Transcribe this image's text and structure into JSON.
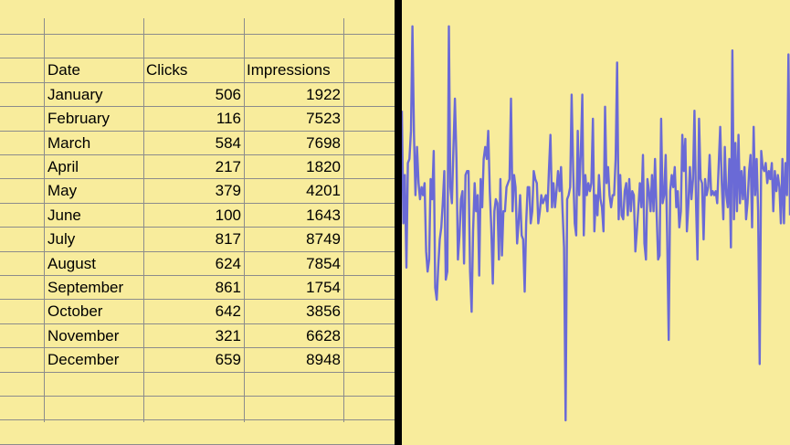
{
  "sheet": {
    "headers": {
      "date": "Date",
      "clicks": "Clicks",
      "impressions": "Impressions"
    },
    "rows": [
      {
        "date": "January",
        "clicks": "506",
        "impressions": "1922"
      },
      {
        "date": "February",
        "clicks": "116",
        "impressions": "7523"
      },
      {
        "date": "March",
        "clicks": "584",
        "impressions": "7698"
      },
      {
        "date": "April",
        "clicks": "217",
        "impressions": "1820"
      },
      {
        "date": "May",
        "clicks": "379",
        "impressions": "4201"
      },
      {
        "date": "June",
        "clicks": "100",
        "impressions": "1643"
      },
      {
        "date": "July",
        "clicks": "817",
        "impressions": "8749"
      },
      {
        "date": "August",
        "clicks": "624",
        "impressions": "7854"
      },
      {
        "date": "September",
        "clicks": "861",
        "impressions": "1754"
      },
      {
        "date": "October",
        "clicks": "642",
        "impressions": "3856"
      },
      {
        "date": "November",
        "clicks": "321",
        "impressions": "6628"
      },
      {
        "date": "December",
        "clicks": "659",
        "impressions": "8948"
      }
    ]
  },
  "chart_data": {
    "type": "line",
    "title": "",
    "xlabel": "",
    "ylabel": "",
    "grid": false,
    "line_color": "#6a6ad6",
    "background_color": "#f8ec9c",
    "ylim": [
      0,
      100
    ],
    "series": [
      {
        "values": [
          77,
          49,
          61,
          38,
          64,
          65,
          72,
          98,
          71,
          56,
          68,
          59,
          55,
          58,
          56,
          59,
          42,
          37,
          40,
          60,
          55,
          67,
          33,
          30,
          38,
          45,
          48,
          54,
          62,
          35,
          37,
          98,
          58,
          54,
          67,
          80,
          65,
          40,
          46,
          55,
          57,
          39,
          61,
          62,
          62,
          37,
          27,
          47,
          59,
          52,
          56,
          36,
          60,
          53,
          65,
          68,
          65,
          72,
          57,
          48,
          34,
          52,
          55,
          54,
          40,
          60,
          41,
          52,
          52,
          58,
          59,
          60,
          80,
          52,
          61,
          58,
          44,
          49,
          56,
          46,
          45,
          32,
          49,
          58,
          58,
          49,
          52,
          62,
          60,
          59,
          49,
          52,
          56,
          54,
          55,
          56,
          52,
          62,
          71,
          53,
          59,
          53,
          57,
          62,
          57,
          63,
          52,
          43,
          0,
          55,
          56,
          58,
          81,
          62,
          49,
          46,
          72,
          56,
          66,
          81,
          46,
          61,
          56,
          59,
          57,
          59,
          75,
          47,
          56,
          51,
          61,
          55,
          53,
          47,
          78,
          59,
          63,
          56,
          53,
          56,
          56,
          65,
          89,
          50,
          61,
          51,
          50,
          57,
          59,
          51,
          60,
          52,
          57,
          56,
          42,
          47,
          53,
          59,
          53,
          66,
          44,
          40,
          60,
          57,
          52,
          61,
          52,
          65,
          52,
          40,
          41,
          75,
          54,
          56,
          66,
          46,
          20,
          57,
          61,
          58,
          63,
          53,
          57,
          48,
          52,
          71,
          62,
          70,
          47,
          54,
          63,
          55,
          60,
          77,
          54,
          40,
          75,
          60,
          59,
          45,
          60,
          56,
          58,
          66,
          56,
          57,
          56,
          57,
          54,
          64,
          73,
          59,
          50,
          68,
          56,
          53,
          65,
          43,
          92,
          50,
          69,
          52,
          71,
          54,
          62,
          55,
          63,
          50,
          54,
          62,
          66,
          48,
          73,
          56,
          65,
          52,
          14,
          67,
          63,
          62,
          64,
          59,
          62,
          60,
          64,
          52,
          62,
          57,
          61,
          58,
          49,
          65,
          49,
          64,
          56,
          91,
          51
        ]
      }
    ]
  }
}
